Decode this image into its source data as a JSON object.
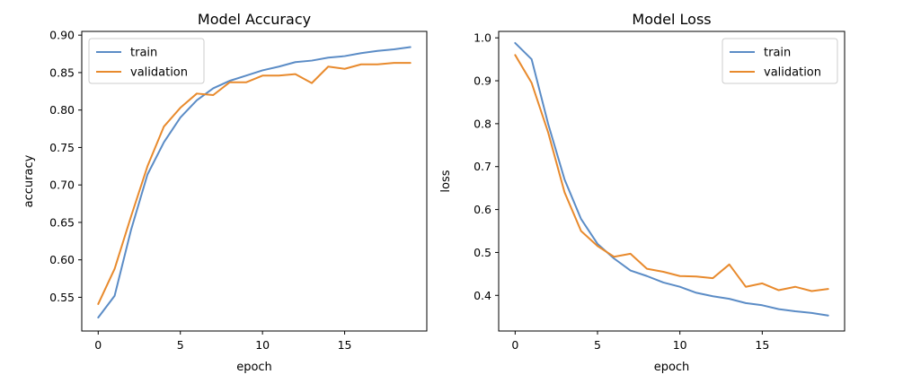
{
  "chart_data": [
    {
      "type": "line",
      "title": "Model Accuracy",
      "xlabel": "epoch",
      "ylabel": "accuracy",
      "xlim": [
        -1,
        20
      ],
      "ylim": [
        0.505,
        0.905
      ],
      "xticks": [
        0,
        5,
        10,
        15
      ],
      "yticks": [
        0.55,
        0.6,
        0.65,
        0.7,
        0.75,
        0.8,
        0.85,
        0.9
      ],
      "legend": "upper-left",
      "grid": false,
      "x": [
        0,
        1,
        2,
        3,
        4,
        5,
        6,
        7,
        8,
        9,
        10,
        11,
        12,
        13,
        14,
        15,
        16,
        17,
        18,
        19
      ],
      "series": [
        {
          "name": "train",
          "color": "#5b8cc6",
          "values": [
            0.523,
            0.552,
            0.64,
            0.714,
            0.757,
            0.79,
            0.813,
            0.829,
            0.839,
            0.846,
            0.853,
            0.858,
            0.864,
            0.866,
            0.87,
            0.872,
            0.876,
            0.879,
            0.881,
            0.884
          ]
        },
        {
          "name": "validation",
          "color": "#e88a2d",
          "values": [
            0.541,
            0.588,
            0.658,
            0.725,
            0.778,
            0.803,
            0.822,
            0.82,
            0.837,
            0.837,
            0.846,
            0.846,
            0.848,
            0.836,
            0.858,
            0.855,
            0.861,
            0.861,
            0.863,
            0.863
          ]
        }
      ]
    },
    {
      "type": "line",
      "title": "Model Loss",
      "xlabel": "epoch",
      "ylabel": "loss",
      "xlim": [
        -1,
        20
      ],
      "ylim": [
        0.317,
        1.015
      ],
      "xticks": [
        0,
        5,
        10,
        15
      ],
      "yticks": [
        0.4,
        0.5,
        0.6,
        0.7,
        0.8,
        0.9,
        1.0
      ],
      "legend": "upper-right",
      "grid": false,
      "x": [
        0,
        1,
        2,
        3,
        4,
        5,
        6,
        7,
        8,
        9,
        10,
        11,
        12,
        13,
        14,
        15,
        16,
        17,
        18,
        19
      ],
      "series": [
        {
          "name": "train",
          "color": "#5b8cc6",
          "values": [
            0.988,
            0.95,
            0.8,
            0.67,
            0.578,
            0.52,
            0.486,
            0.458,
            0.445,
            0.43,
            0.42,
            0.406,
            0.398,
            0.392,
            0.382,
            0.377,
            0.368,
            0.363,
            0.359,
            0.353
          ]
        },
        {
          "name": "validation",
          "color": "#e88a2d",
          "values": [
            0.96,
            0.895,
            0.78,
            0.64,
            0.55,
            0.515,
            0.49,
            0.497,
            0.462,
            0.455,
            0.445,
            0.444,
            0.44,
            0.472,
            0.42,
            0.428,
            0.412,
            0.42,
            0.41,
            0.415
          ]
        }
      ]
    }
  ]
}
